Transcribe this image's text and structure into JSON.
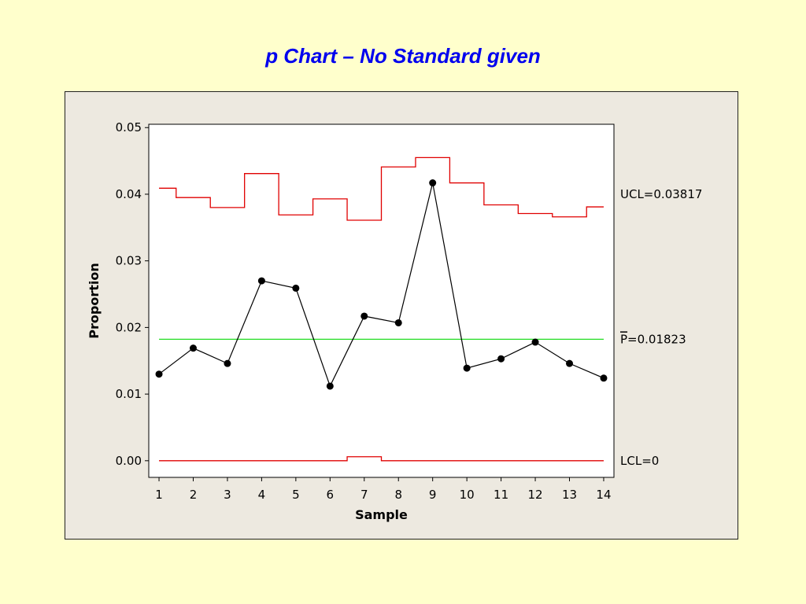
{
  "slide": {
    "title": "p Chart – No Standard given"
  },
  "colors": {
    "background": "#ffffcc",
    "title": "#0000ee",
    "frame": "#ede9e0",
    "limits": "#e00000",
    "center": "#22dd22",
    "points": "#000000"
  },
  "chart_data": {
    "type": "line",
    "title": "p Chart – No Standard given",
    "xlabel": "Sample",
    "ylabel": "Proportion",
    "x": [
      1,
      2,
      3,
      4,
      5,
      6,
      7,
      8,
      9,
      10,
      11,
      12,
      13,
      14
    ],
    "xlim": [
      0.7,
      14.3
    ],
    "ylim": [
      -0.0025,
      0.0505
    ],
    "yticks": [
      0.0,
      0.01,
      0.02,
      0.03,
      0.04,
      0.05
    ],
    "ytick_labels": [
      "0.00",
      "0.01",
      "0.02",
      "0.03",
      "0.04",
      "0.05"
    ],
    "grid": false,
    "series": [
      {
        "role": "data",
        "values": [
          0.013,
          0.0169,
          0.0146,
          0.027,
          0.0259,
          0.0112,
          0.0217,
          0.0207,
          0.0417,
          0.0139,
          0.0153,
          0.0178,
          0.0146,
          0.0124
        ]
      },
      {
        "role": "ucl",
        "values": [
          0.0409,
          0.0395,
          0.038,
          0.0431,
          0.0369,
          0.0393,
          0.0361,
          0.0441,
          0.0455,
          0.0417,
          0.0384,
          0.0371,
          0.0366,
          0.0381
        ]
      },
      {
        "role": "lcl",
        "values": [
          0,
          0,
          0,
          0,
          0,
          0,
          0.0006,
          0,
          0,
          0,
          0,
          0,
          0,
          0
        ]
      }
    ],
    "center_line": 0.01823,
    "annotations": {
      "ucl": "UCL=0.03817",
      "center_symbol": "P",
      "center_value": "=0.01823",
      "lcl": "LCL=0"
    }
  }
}
